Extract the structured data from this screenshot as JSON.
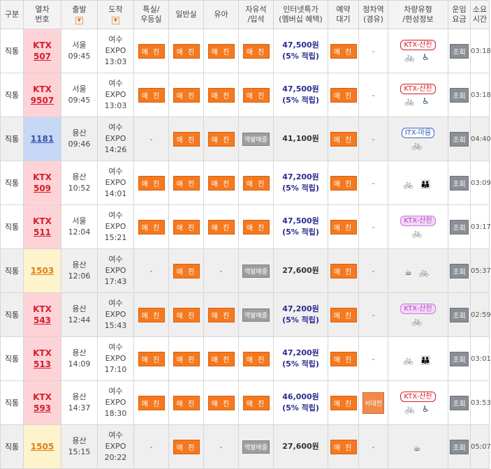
{
  "headers": [
    {
      "label": "구분"
    },
    {
      "label": "열차\n번호"
    },
    {
      "label": "출발",
      "sort": "▼"
    },
    {
      "label": "도착",
      "sort": "▼"
    },
    {
      "label": "특실/\n우등실"
    },
    {
      "label": "일반실"
    },
    {
      "label": "유아"
    },
    {
      "label": "자유석\n/입석"
    },
    {
      "label": "인터넷특가\n(멤버십 혜택)"
    },
    {
      "label": "예약\n대기"
    },
    {
      "label": "정차역\n(경유)"
    },
    {
      "label": "차량유형\n/편성정보"
    },
    {
      "label": "운임\n요금"
    },
    {
      "label": "소요\n시간"
    }
  ],
  "labels": {
    "soldout": "매 진",
    "station_sold": "역발매중",
    "lookup": "조회",
    "dash": "-"
  },
  "rows": [
    {
      "gubun": "직통",
      "type": "KTX",
      "type_class": "ktx",
      "num": "507",
      "dep": "서울",
      "dep_time": "09:45",
      "arr": "여수\nEXPO",
      "arr_time": "13:03",
      "special": "매 진",
      "general": "매 진",
      "infant": "매 진",
      "free": "매 진",
      "price": "47,500원",
      "price_note": "(5% 적립)",
      "wait": "매 진",
      "stopover": "-",
      "badge": "KTX-산천",
      "badge_class": "ktx",
      "icons": "🚲 ♿",
      "dur": "03:18",
      "alt": false
    },
    {
      "gubun": "직통",
      "type": "KTX",
      "type_class": "ktx",
      "num": "9507",
      "dep": "서울",
      "dep_time": "09:45",
      "arr": "여수\nEXPO",
      "arr_time": "13:03",
      "special": "매 진",
      "general": "매 진",
      "infant": "매 진",
      "free": "매 진",
      "price": "47,500원",
      "price_note": "(5% 적립)",
      "wait": "매 진",
      "stopover": "-",
      "badge": "KTX-산천",
      "badge_class": "ktx",
      "icons": "🚲 ♿",
      "dur": "03:18",
      "alt": false
    },
    {
      "gubun": "직통",
      "type": "",
      "type_class": "itx",
      "num": "1181",
      "dep": "용산",
      "dep_time": "09:46",
      "arr": "여수\nEXPO",
      "arr_time": "14:26",
      "special": "-",
      "general": "매 진",
      "infant": "매 진",
      "free": "역발매중",
      "price": "41,100원",
      "price_note": "",
      "wait": "매 진",
      "stopover": "-",
      "badge": "ITX-마음",
      "badge_class": "itx",
      "icons": "🚲",
      "dur": "04:40",
      "alt": true
    },
    {
      "gubun": "직통",
      "type": "KTX",
      "type_class": "ktx",
      "num": "509",
      "dep": "용산",
      "dep_time": "10:52",
      "arr": "여수\nEXPO",
      "arr_time": "14:01",
      "special": "매 진",
      "general": "매 진",
      "infant": "매 진",
      "free": "매 진",
      "price": "47,200원",
      "price_note": "(5% 적립)",
      "wait": "매 진",
      "stopover": "-",
      "badge": "",
      "badge_class": "",
      "icons": "🚲 👪",
      "dur": "03:09",
      "alt": false
    },
    {
      "gubun": "직통",
      "type": "KTX",
      "type_class": "ktx",
      "num": "511",
      "dep": "서울",
      "dep_time": "12:04",
      "arr": "여수\nEXPO",
      "arr_time": "15:21",
      "special": "매 진",
      "general": "매 진",
      "infant": "매 진",
      "free": "매 진",
      "price": "47,500원",
      "price_note": "(5% 적립)",
      "wait": "매 진",
      "stopover": "-",
      "badge": "KTX-산천",
      "badge_class": "ktx-pale",
      "icons": "🚲",
      "dur": "03:17",
      "alt": false
    },
    {
      "gubun": "직통",
      "type": "",
      "type_class": "mugung",
      "num": "1503",
      "dep": "용산",
      "dep_time": "12:06",
      "arr": "여수\nEXPO",
      "arr_time": "17:43",
      "special": "-",
      "general": "매 진",
      "infant": "-",
      "free": "역발매중",
      "price": "27,600원",
      "price_note": "",
      "wait": "매 진",
      "stopover": "-",
      "badge": "",
      "badge_class": "",
      "icons": "☕ 🚲",
      "dur": "05:37",
      "alt": true
    },
    {
      "gubun": "직통",
      "type": "KTX",
      "type_class": "ktx",
      "num": "543",
      "dep": "용산",
      "dep_time": "12:44",
      "arr": "여수\nEXPO",
      "arr_time": "15:43",
      "special": "매 진",
      "general": "매 진",
      "infant": "매 진",
      "free": "역발매중",
      "price": "47,200원",
      "price_note": "(5% 적립)",
      "wait": "매 진",
      "stopover": "-",
      "badge": "KTX-산천",
      "badge_class": "ktx-pale",
      "icons": "🚲",
      "dur": "02:59",
      "alt": true
    },
    {
      "gubun": "직통",
      "type": "KTX",
      "type_class": "ktx",
      "num": "513",
      "dep": "용산",
      "dep_time": "14:09",
      "arr": "여수\nEXPO",
      "arr_time": "17:10",
      "special": "매 진",
      "general": "매 진",
      "infant": "매 진",
      "free": "매 진",
      "price": "47,200원",
      "price_note": "(5% 적립)",
      "wait": "매 진",
      "stopover": "-",
      "badge": "",
      "badge_class": "",
      "icons": "🚲 👪",
      "dur": "03:01",
      "alt": false
    },
    {
      "gubun": "직통",
      "type": "KTX",
      "type_class": "ktx",
      "num": "593",
      "dep": "용산",
      "dep_time": "14:37",
      "arr": "여수\nEXPO",
      "arr_time": "18:30",
      "special": "매 진",
      "general": "매 진",
      "infant": "매 진",
      "free": "매 진",
      "price": "46,000원",
      "price_note": "(5% 적립)",
      "wait": "매 진",
      "stopover": "서대전",
      "badge": "KTX-산천",
      "badge_class": "ktx",
      "icons": "🚲 ♿",
      "dur": "03:53",
      "alt": false
    },
    {
      "gubun": "직통",
      "type": "",
      "type_class": "mugung",
      "num": "1505",
      "dep": "용산",
      "dep_time": "15:15",
      "arr": "여수\nEXPO",
      "arr_time": "20:22",
      "special": "-",
      "general": "매 진",
      "infant": "-",
      "free": "역발매중",
      "price": "27,600원",
      "price_note": "",
      "wait": "매 진",
      "stopover": "-",
      "badge": "",
      "badge_class": "",
      "icons": "☕",
      "dur": "05:07",
      "alt": true
    }
  ]
}
